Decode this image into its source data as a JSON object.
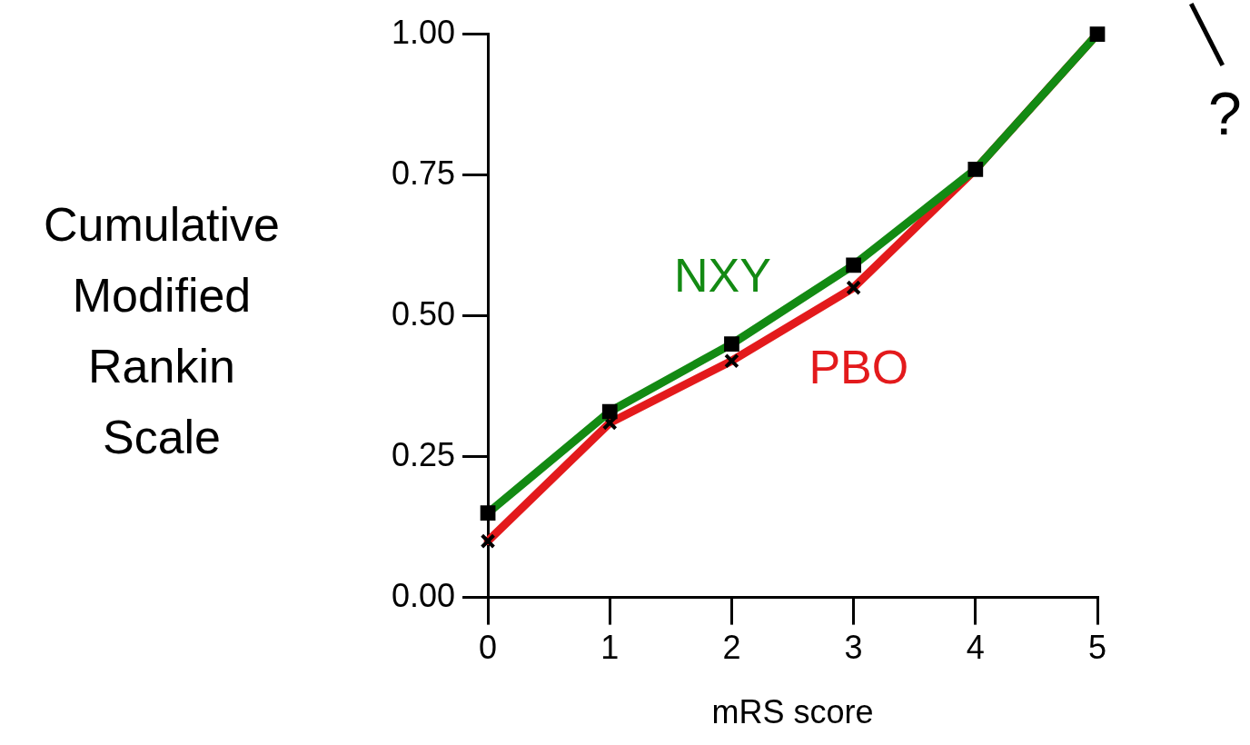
{
  "chart_data": {
    "type": "line",
    "xlabel": "mRS score",
    "ylabel": "Cumulative Modified Rankin Scale",
    "x": [
      0,
      1,
      2,
      3,
      4,
      5
    ],
    "xlim": [
      0,
      5
    ],
    "xticks": [
      0,
      1,
      2,
      3,
      4,
      5
    ],
    "ylim": [
      0,
      1
    ],
    "yticks": [
      {
        "value": 0,
        "label": "0.00"
      },
      {
        "value": 0.25,
        "label": "0.25"
      },
      {
        "value": 0.5,
        "label": "0.50"
      },
      {
        "value": 0.75,
        "label": "0.75"
      },
      {
        "value": 1,
        "label": "1.00"
      }
    ],
    "grid": false,
    "legend": false,
    "series": [
      {
        "name": "PBO",
        "color": "#e31a1c",
        "marker": "cross",
        "values": [
          0.1,
          0.31,
          0.42,
          0.55,
          0.76,
          1.0
        ]
      },
      {
        "name": "NXY",
        "color": "#138a13",
        "marker": "square",
        "values": [
          0.15,
          0.33,
          0.45,
          0.59,
          0.76,
          1.0
        ]
      }
    ],
    "annotations": [
      "?"
    ]
  }
}
